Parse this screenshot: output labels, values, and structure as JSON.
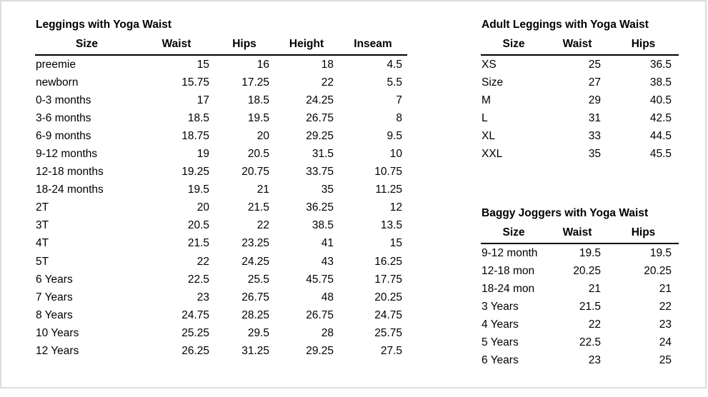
{
  "colors": {
    "background": "#ffffff",
    "text": "#000000",
    "frame_border": "#dcdcdc",
    "header_rule": "#000000"
  },
  "tables": [
    {
      "title": "Leggings with Yoga Waist",
      "columns": [
        "Size",
        "Waist",
        "Hips",
        "Height",
        "Inseam"
      ],
      "rows": [
        [
          "preemie",
          "15",
          "16",
          "18",
          "4.5"
        ],
        [
          "newborn",
          "15.75",
          "17.25",
          "22",
          "5.5"
        ],
        [
          "0-3 months",
          "17",
          "18.5",
          "24.25",
          "7"
        ],
        [
          "3-6 months",
          "18.5",
          "19.5",
          "26.75",
          "8"
        ],
        [
          "6-9 months",
          "18.75",
          "20",
          "29.25",
          "9.5"
        ],
        [
          "9-12 months",
          "19",
          "20.5",
          "31.5",
          "10"
        ],
        [
          "12-18 months",
          "19.25",
          "20.75",
          "33.75",
          "10.75"
        ],
        [
          "18-24 months",
          "19.5",
          "21",
          "35",
          "11.25"
        ],
        [
          "2T",
          "20",
          "21.5",
          "36.25",
          "12"
        ],
        [
          "3T",
          "20.5",
          "22",
          "38.5",
          "13.5"
        ],
        [
          "4T",
          "21.5",
          "23.25",
          "41",
          "15"
        ],
        [
          "5T",
          "22",
          "24.25",
          "43",
          "16.25"
        ],
        [
          "6 Years",
          "22.5",
          "25.5",
          "45.75",
          "17.75"
        ],
        [
          "7 Years",
          "23",
          "26.75",
          "48",
          "20.25"
        ],
        [
          "8 Years",
          "24.75",
          "28.25",
          "26.75",
          "24.75"
        ],
        [
          "10 Years",
          "25.25",
          "29.5",
          "28",
          "25.75"
        ],
        [
          "12 Years",
          "26.25",
          "31.25",
          "29.25",
          "27.5"
        ]
      ]
    },
    {
      "title": "Adult Leggings with Yoga Waist",
      "columns": [
        "Size",
        "Waist",
        "Hips"
      ],
      "rows": [
        [
          "XS",
          "25",
          "36.5"
        ],
        [
          "Size",
          "27",
          "38.5"
        ],
        [
          "M",
          "29",
          "40.5"
        ],
        [
          "L",
          "31",
          "42.5"
        ],
        [
          "XL",
          "33",
          "44.5"
        ],
        [
          "XXL",
          "35",
          "45.5"
        ]
      ]
    },
    {
      "title": "Baggy Joggers with Yoga Waist",
      "columns": [
        "Size",
        "Waist",
        "Hips"
      ],
      "rows": [
        [
          "9-12 month",
          "19.5",
          "19.5"
        ],
        [
          "12-18 mon",
          "20.25",
          "20.25"
        ],
        [
          "18-24 mon",
          "21",
          "21"
        ],
        [
          "3 Years",
          "21.5",
          "22"
        ],
        [
          "4 Years",
          "22",
          "23"
        ],
        [
          "5 Years",
          "22.5",
          "24"
        ],
        [
          "6 Years",
          "23",
          "25"
        ]
      ]
    }
  ]
}
